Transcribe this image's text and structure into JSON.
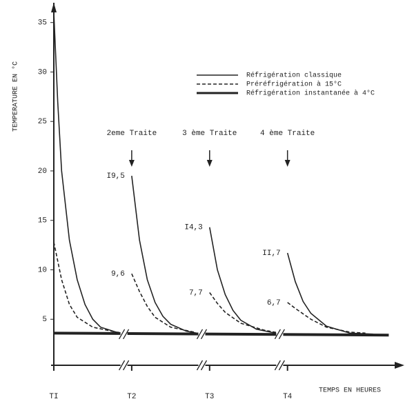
{
  "chart_data": {
    "type": "line",
    "y_label": "TEMPERATURE EN °C",
    "x_label": "TEMPS EN HEURES",
    "xlim": [
      0,
      4.5
    ],
    "ylim": [
      0,
      37
    ],
    "yticks": [
      5,
      10,
      15,
      20,
      25,
      30,
      35
    ],
    "xticks": [
      {
        "value": 0,
        "label": "TI"
      },
      {
        "value": 1,
        "label": "T2"
      },
      {
        "value": 2,
        "label": "T3"
      },
      {
        "value": 3,
        "label": "T4"
      }
    ],
    "series": [
      {
        "name": "Réfrigération classique",
        "color": "#222",
        "style": "solid",
        "width": 1.6,
        "x": [
          0,
          0.05,
          0.1,
          0.2,
          0.3,
          0.4,
          0.5,
          0.6,
          0.8,
          0.95,
          null,
          1,
          1.1,
          1.2,
          1.3,
          1.4,
          1.5,
          1.7,
          1.9,
          null,
          2,
          2.1,
          2.2,
          2.3,
          2.4,
          2.6,
          2.9,
          null,
          3,
          3.1,
          3.2,
          3.3,
          3.5,
          3.8,
          4.1
        ],
        "values": [
          36,
          27,
          20,
          13,
          9,
          6.5,
          5,
          4.2,
          3.7,
          3.5,
          null,
          19.5,
          13,
          9,
          6.7,
          5.3,
          4.5,
          3.8,
          3.5,
          null,
          14.3,
          10,
          7.5,
          5.9,
          4.9,
          4,
          3.5,
          null,
          11.7,
          8.8,
          6.8,
          5.6,
          4.3,
          3.6,
          3.5
        ]
      },
      {
        "name": "Préréfrigération à 15°C",
        "color": "#222",
        "style": "dashed",
        "width": 1.6,
        "x": [
          0,
          0.1,
          0.2,
          0.3,
          0.5,
          0.8,
          0.95,
          null,
          1,
          1.1,
          1.2,
          1.3,
          1.5,
          1.8,
          null,
          2,
          2.1,
          2.2,
          2.4,
          2.7,
          2.9,
          null,
          3,
          3.1,
          3.3,
          3.5,
          3.8,
          4.0
        ],
        "values": [
          12.8,
          9,
          6.5,
          5.2,
          4.2,
          3.7,
          3.6,
          null,
          9.6,
          7.8,
          6.3,
          5.2,
          4.2,
          3.7,
          null,
          7.7,
          6.6,
          5.7,
          4.6,
          3.9,
          3.6,
          null,
          6.7,
          6.1,
          5,
          4.2,
          3.7,
          3.6
        ]
      },
      {
        "name": "Réfrigération instantanée à 4°C",
        "color": "#222",
        "style": "solid",
        "width": 4,
        "x": [
          0,
          4.3
        ],
        "values": [
          3.6,
          3.4
        ]
      }
    ],
    "annotations": [
      {
        "text": "I9,5",
        "x": 1,
        "y": 19.5
      },
      {
        "text": "9,6",
        "x": 1,
        "y": 9.6
      },
      {
        "text": "I4,3",
        "x": 2,
        "y": 14.3
      },
      {
        "text": "7,7",
        "x": 2,
        "y": 7.7
      },
      {
        "text": "II,7",
        "x": 3,
        "y": 11.7
      },
      {
        "text": "6,7",
        "x": 3,
        "y": 6.7
      }
    ],
    "events": [
      {
        "text": "2eme Traite",
        "x": 1
      },
      {
        "text": "3 ème Traite",
        "x": 2
      },
      {
        "text": "4 ème Traite",
        "x": 3
      }
    ]
  }
}
